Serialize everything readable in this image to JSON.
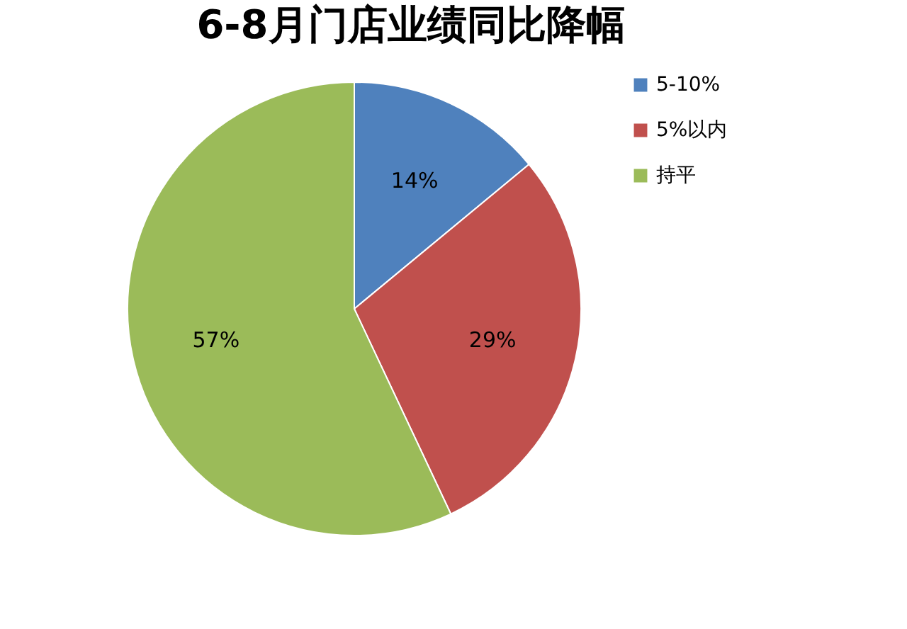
{
  "chart_data": {
    "type": "pie",
    "title": "6-8月门店业绩同比降幅",
    "categories": [
      "5-10%",
      "5%以内",
      "持平"
    ],
    "values": [
      14,
      29,
      57
    ],
    "colors": [
      "#4f81bd",
      "#c0504d",
      "#9bbb59"
    ],
    "value_labels": [
      "14%",
      "29%",
      "57%"
    ],
    "legend": "right"
  }
}
